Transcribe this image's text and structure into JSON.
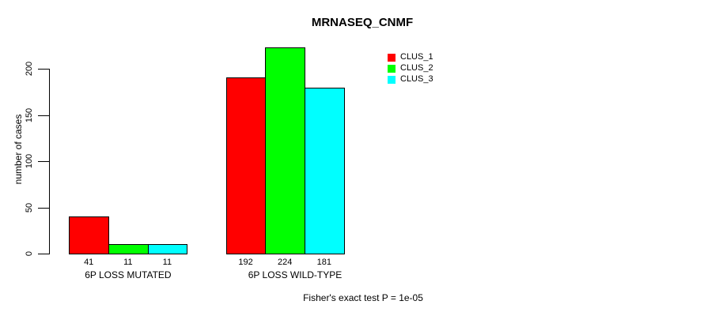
{
  "chart_data": {
    "type": "bar",
    "title": "MRNASEQ_CNMF",
    "ylabel": "number of cases",
    "xlabel": "",
    "categories": [
      "6P LOSS MUTATED",
      "6P LOSS WILD-TYPE"
    ],
    "series": [
      {
        "name": "CLUS_1",
        "color": "#ff0000",
        "values": [
          41,
          192
        ]
      },
      {
        "name": "CLUS_2",
        "color": "#00ff00",
        "values": [
          11,
          224
        ]
      },
      {
        "name": "CLUS_3",
        "color": "#00ffff",
        "values": [
          11,
          181
        ]
      }
    ],
    "bar_value_labels": [
      [
        "41",
        "11",
        "11"
      ],
      [
        "192",
        "224",
        "181"
      ]
    ],
    "y_ticks": [
      0,
      50,
      100,
      150,
      200
    ],
    "ylim": [
      0,
      200
    ],
    "grid": false,
    "legend_position": "top-right",
    "axis_color": "#000000",
    "bar_border_color": "#000000"
  },
  "footer": {
    "note": "Fisher's exact test P = 1e-05"
  }
}
